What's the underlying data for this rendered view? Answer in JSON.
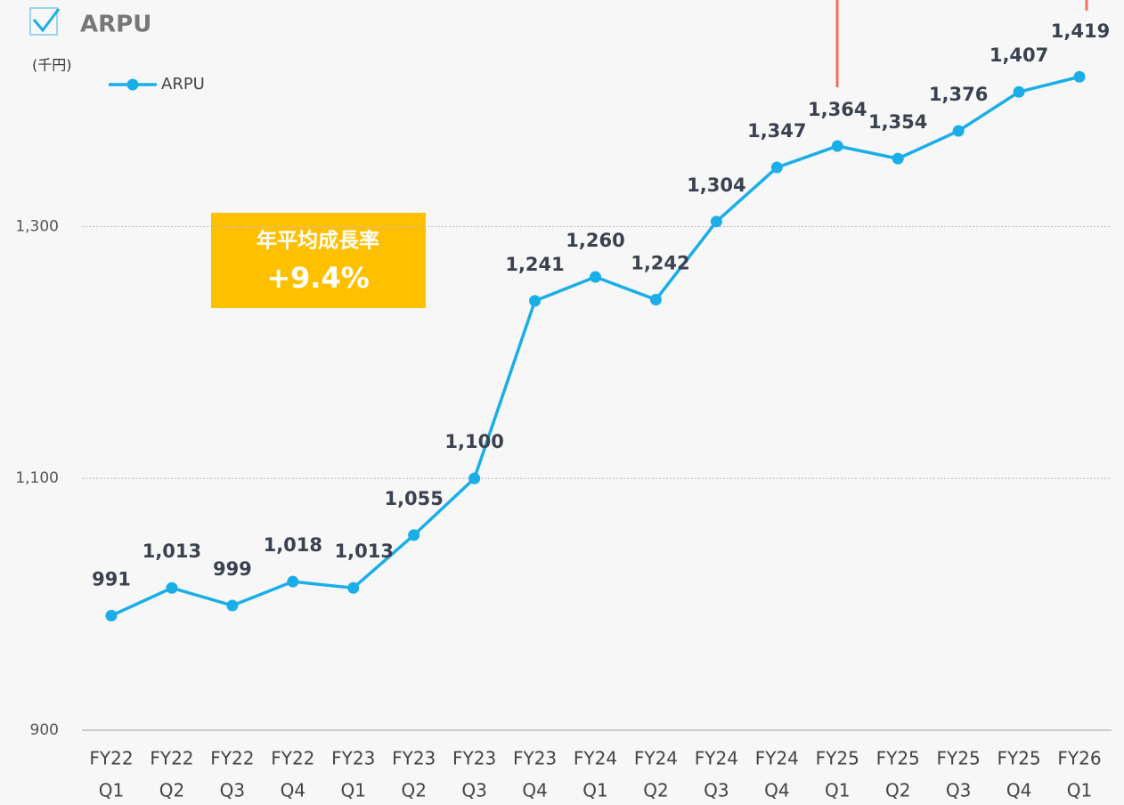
{
  "chart_data": {
    "type": "line",
    "title": "ARPU",
    "y_label": "(千円)",
    "annotation": {
      "title": "年平均成長率",
      "value": "+9.4%"
    },
    "categories": [
      [
        "FY22",
        "Q1"
      ],
      [
        "FY22",
        "Q2"
      ],
      [
        "FY22",
        "Q3"
      ],
      [
        "FY22",
        "Q4"
      ],
      [
        "FY23",
        "Q1"
      ],
      [
        "FY23",
        "Q2"
      ],
      [
        "FY23",
        "Q3"
      ],
      [
        "FY23",
        "Q4"
      ],
      [
        "FY24",
        "Q1"
      ],
      [
        "FY24",
        "Q2"
      ],
      [
        "FY24",
        "Q3"
      ],
      [
        "FY24",
        "Q4"
      ],
      [
        "FY25",
        "Q1"
      ],
      [
        "FY25",
        "Q2"
      ],
      [
        "FY25",
        "Q3"
      ],
      [
        "FY25",
        "Q4"
      ],
      [
        "FY26",
        "Q1"
      ]
    ],
    "series": [
      {
        "name": "ARPU",
        "color": "#1aaee8",
        "values": [
          991,
          1013,
          999,
          1018,
          1013,
          1055,
          1100,
          1241,
          1260,
          1242,
          1304,
          1347,
          1364,
          1354,
          1376,
          1407,
          1419
        ],
        "value_labels": [
          "991",
          "1,013",
          "999",
          "1,018",
          "1,013",
          "1,055",
          "1,100",
          "1,241",
          "1,260",
          "1,242",
          "1,304",
          "1,347",
          "1,364",
          "1,354",
          "1,376",
          "1,407",
          "1,419"
        ]
      }
    ],
    "ylim": [
      900,
      1480
    ],
    "yticks": [
      900,
      {
        "value": 1100,
        "label": "1,100"
      },
      {
        "value": 1300,
        "label": "1,300"
      }
    ],
    "grid": true
  }
}
